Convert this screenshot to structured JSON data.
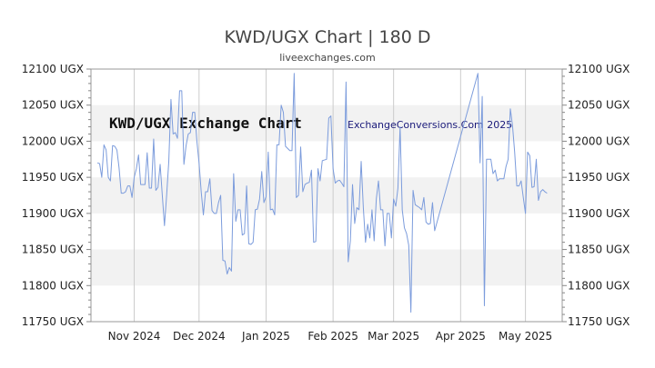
{
  "header": {
    "title": "KWD/UGX Chart | 180 D",
    "subtitle": "liveexchanges.com"
  },
  "watermarks": {
    "left": "KWD/UGX Exchange Chart",
    "right": "ExchangeConversions.Com 2025"
  },
  "chart_data": {
    "type": "line",
    "title": "KWD/UGX Chart | 180 D",
    "subtitle": "liveexchanges.com",
    "xlabel": "",
    "ylabel": "",
    "x_range": [
      "2024-10-12",
      "2025-05-18"
    ],
    "ylim": [
      11750,
      12100
    ],
    "y_ticks": [
      12100,
      12050,
      12000,
      11950,
      11900,
      11850,
      11800,
      11750
    ],
    "y_tick_suffix": " UGX",
    "x_ticks": [
      {
        "label": "Nov 2024",
        "date": "2024-11-01"
      },
      {
        "label": "Dec 2024",
        "date": "2024-12-01"
      },
      {
        "label": "Jan 2025",
        "date": "2025-01-01"
      },
      {
        "label": "Feb 2025",
        "date": "2025-02-01"
      },
      {
        "label": "Mar 2025",
        "date": "2025-03-01"
      },
      {
        "label": "Apr 2025",
        "date": "2025-04-01"
      },
      {
        "label": "May 2025",
        "date": "2025-05-01"
      }
    ],
    "grid": true,
    "legend": "none",
    "colors": {
      "line": "#7c9cdc",
      "band": "#f2f2f2",
      "grid": "#cccccc",
      "axis": "#888888"
    },
    "series": [
      {
        "color": "#7c9cdc",
        "points": [
          [
            "2024-10-15",
            11970
          ],
          [
            "2024-10-16",
            11969
          ],
          [
            "2024-10-17",
            11950
          ],
          [
            "2024-10-18",
            11995
          ],
          [
            "2024-10-19",
            11988
          ],
          [
            "2024-10-20",
            11950
          ],
          [
            "2024-10-21",
            11945
          ],
          [
            "2024-10-22",
            11994
          ],
          [
            "2024-10-23",
            11993
          ],
          [
            "2024-10-24",
            11988
          ],
          [
            "2024-10-25",
            11963
          ],
          [
            "2024-10-26",
            11928
          ],
          [
            "2024-10-27",
            11928
          ],
          [
            "2024-10-28",
            11930
          ],
          [
            "2024-10-29",
            11938
          ],
          [
            "2024-10-30",
            11938
          ],
          [
            "2024-10-31",
            11922
          ],
          [
            "2024-11-01",
            11950
          ],
          [
            "2024-11-02",
            11962
          ],
          [
            "2024-11-03",
            11981
          ],
          [
            "2024-11-04",
            11940
          ],
          [
            "2024-11-05",
            11940
          ],
          [
            "2024-11-06",
            11940
          ],
          [
            "2024-11-07",
            11984
          ],
          [
            "2024-11-08",
            11935
          ],
          [
            "2024-11-09",
            11935
          ],
          [
            "2024-11-10",
            12003
          ],
          [
            "2024-11-11",
            11932
          ],
          [
            "2024-11-12",
            11936
          ],
          [
            "2024-11-13",
            11968
          ],
          [
            "2024-11-14",
            11925
          ],
          [
            "2024-11-15",
            11883
          ],
          [
            "2024-11-16",
            11925
          ],
          [
            "2024-11-17",
            11972
          ],
          [
            "2024-11-18",
            12058
          ],
          [
            "2024-11-19",
            12010
          ],
          [
            "2024-11-20",
            12012
          ],
          [
            "2024-11-21",
            12004
          ],
          [
            "2024-11-22",
            12070
          ],
          [
            "2024-11-23",
            12070
          ],
          [
            "2024-11-24",
            11968
          ],
          [
            "2024-11-25",
            11994
          ],
          [
            "2024-11-26",
            12010
          ],
          [
            "2024-11-27",
            12012
          ],
          [
            "2024-11-28",
            12040
          ],
          [
            "2024-11-29",
            12040
          ],
          [
            "2024-11-30",
            12000
          ],
          [
            "2024-12-01",
            11970
          ],
          [
            "2024-12-02",
            11930
          ],
          [
            "2024-12-03",
            11898
          ],
          [
            "2024-12-04",
            11930
          ],
          [
            "2024-12-05",
            11930
          ],
          [
            "2024-12-06",
            11948
          ],
          [
            "2024-12-07",
            11904
          ],
          [
            "2024-12-08",
            11900
          ],
          [
            "2024-12-09",
            11900
          ],
          [
            "2024-12-10",
            11915
          ],
          [
            "2024-12-11",
            11925
          ],
          [
            "2024-12-12",
            11835
          ],
          [
            "2024-12-13",
            11834
          ],
          [
            "2024-12-14",
            11816
          ],
          [
            "2024-12-15",
            11825
          ],
          [
            "2024-12-16",
            11820
          ],
          [
            "2024-12-17",
            11955
          ],
          [
            "2024-12-18",
            11889
          ],
          [
            "2024-12-19",
            11905
          ],
          [
            "2024-12-20",
            11905
          ],
          [
            "2024-12-21",
            11870
          ],
          [
            "2024-12-22",
            11872
          ],
          [
            "2024-12-23",
            11938
          ],
          [
            "2024-12-24",
            11858
          ],
          [
            "2024-12-25",
            11857
          ],
          [
            "2024-12-26",
            11860
          ],
          [
            "2024-12-27",
            11905
          ],
          [
            "2024-12-28",
            11906
          ],
          [
            "2024-12-29",
            11920
          ],
          [
            "2024-12-30",
            11958
          ],
          [
            "2024-12-31",
            11915
          ],
          [
            "2025-01-01",
            11923
          ],
          [
            "2025-01-02",
            11985
          ],
          [
            "2025-01-03",
            11905
          ],
          [
            "2025-01-04",
            11906
          ],
          [
            "2025-01-05",
            11898
          ],
          [
            "2025-01-06",
            11995
          ],
          [
            "2025-01-07",
            11995
          ],
          [
            "2025-01-08",
            12050
          ],
          [
            "2025-01-09",
            12040
          ],
          [
            "2025-01-10",
            11993
          ],
          [
            "2025-01-11",
            11990
          ],
          [
            "2025-01-12",
            11987
          ],
          [
            "2025-01-13",
            11987
          ],
          [
            "2025-01-14",
            12094
          ],
          [
            "2025-01-15",
            11922
          ],
          [
            "2025-01-16",
            11925
          ],
          [
            "2025-01-17",
            11992
          ],
          [
            "2025-01-18",
            11930
          ],
          [
            "2025-01-19",
            11940
          ],
          [
            "2025-01-20",
            11942
          ],
          [
            "2025-01-21",
            11943
          ],
          [
            "2025-01-22",
            11960
          ],
          [
            "2025-01-23",
            11860
          ],
          [
            "2025-01-24",
            11861
          ],
          [
            "2025-01-25",
            11962
          ],
          [
            "2025-01-26",
            11945
          ],
          [
            "2025-01-27",
            11973
          ],
          [
            "2025-01-28",
            11974
          ],
          [
            "2025-01-29",
            11975
          ],
          [
            "2025-01-30",
            12032
          ],
          [
            "2025-01-31",
            12035
          ],
          [
            "2025-02-01",
            11962
          ],
          [
            "2025-02-02",
            11942
          ],
          [
            "2025-02-03",
            11945
          ],
          [
            "2025-02-04",
            11946
          ],
          [
            "2025-02-05",
            11942
          ],
          [
            "2025-02-06",
            11937
          ],
          [
            "2025-02-07",
            12082
          ],
          [
            "2025-02-08",
            11833
          ],
          [
            "2025-02-09",
            11862
          ],
          [
            "2025-02-10",
            11940
          ],
          [
            "2025-02-11",
            11886
          ],
          [
            "2025-02-12",
            11908
          ],
          [
            "2025-02-13",
            11905
          ],
          [
            "2025-02-14",
            11972
          ],
          [
            "2025-02-15",
            11908
          ],
          [
            "2025-02-16",
            11860
          ],
          [
            "2025-02-17",
            11885
          ],
          [
            "2025-02-18",
            11866
          ],
          [
            "2025-02-19",
            11905
          ],
          [
            "2025-02-20",
            11862
          ],
          [
            "2025-02-21",
            11920
          ],
          [
            "2025-02-22",
            11945
          ],
          [
            "2025-02-23",
            11905
          ],
          [
            "2025-02-24",
            11905
          ],
          [
            "2025-02-25",
            11855
          ],
          [
            "2025-02-26",
            11900
          ],
          [
            "2025-02-27",
            11900
          ],
          [
            "2025-02-28",
            11866
          ],
          [
            "2025-03-01",
            11920
          ],
          [
            "2025-03-02",
            11910
          ],
          [
            "2025-03-03",
            11935
          ],
          [
            "2025-03-04",
            12020
          ],
          [
            "2025-03-05",
            11905
          ],
          [
            "2025-03-06",
            11880
          ],
          [
            "2025-03-07",
            11872
          ],
          [
            "2025-03-08",
            11856
          ],
          [
            "2025-03-09",
            11763
          ],
          [
            "2025-03-10",
            11932
          ],
          [
            "2025-03-11",
            11912
          ],
          [
            "2025-03-12",
            11910
          ],
          [
            "2025-03-13",
            11908
          ],
          [
            "2025-03-14",
            11905
          ],
          [
            "2025-03-15",
            11922
          ],
          [
            "2025-03-16",
            11888
          ],
          [
            "2025-03-17",
            11885
          ],
          [
            "2025-03-18",
            11886
          ],
          [
            "2025-03-19",
            11915
          ],
          [
            "2025-03-20",
            11876
          ],
          [
            "2025-04-09",
            12094
          ],
          [
            "2025-04-10",
            11970
          ],
          [
            "2025-04-11",
            12062
          ],
          [
            "2025-04-12",
            11772
          ],
          [
            "2025-04-13",
            11975
          ],
          [
            "2025-04-14",
            11975
          ],
          [
            "2025-04-15",
            11975
          ],
          [
            "2025-04-16",
            11955
          ],
          [
            "2025-04-17",
            11960
          ],
          [
            "2025-04-18",
            11945
          ],
          [
            "2025-04-19",
            11948
          ],
          [
            "2025-04-20",
            11948
          ],
          [
            "2025-04-21",
            11948
          ],
          [
            "2025-04-22",
            11965
          ],
          [
            "2025-04-23",
            11975
          ],
          [
            "2025-04-24",
            12045
          ],
          [
            "2025-04-25",
            12022
          ],
          [
            "2025-04-26",
            11985
          ],
          [
            "2025-04-27",
            11938
          ],
          [
            "2025-04-28",
            11938
          ],
          [
            "2025-04-29",
            11945
          ],
          [
            "2025-04-30",
            11922
          ],
          [
            "2025-05-01",
            11900
          ],
          [
            "2025-05-02",
            11985
          ],
          [
            "2025-05-03",
            11980
          ],
          [
            "2025-05-04",
            11936
          ],
          [
            "2025-05-05",
            11937
          ],
          [
            "2025-05-06",
            11975
          ],
          [
            "2025-05-07",
            11918
          ],
          [
            "2025-05-08",
            11930
          ],
          [
            "2025-05-09",
            11933
          ],
          [
            "2025-05-10",
            11930
          ],
          [
            "2025-05-11",
            11928
          ]
        ]
      }
    ]
  }
}
